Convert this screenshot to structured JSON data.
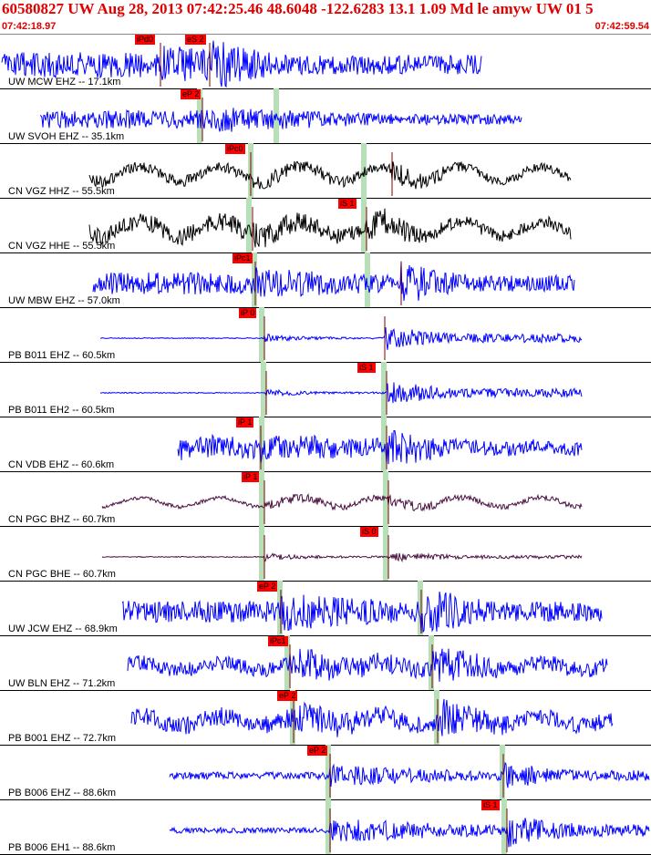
{
  "header": {
    "title": "60580827 UW Aug 28, 2013 07:42:25.46   48.6048 -122.6283 13.1 1.09 Md le amyw UW 01   5",
    "time_start": "07:42:18.97",
    "time_end": "07:42:59.54"
  },
  "colors": {
    "title": "#e00000",
    "blue_trace": "#0000ff",
    "black_trace": "#000000",
    "purple_trace": "#4a1040",
    "pick_flag": "#ff0000",
    "arrival_band": "#b8e0b8"
  },
  "traces": [
    {
      "label": "UW MCW EHZ -- 17.1km",
      "color": "blue",
      "picks": [
        "iPd0",
        "eS 2"
      ]
    },
    {
      "label": "UW SVOH EHZ -- 35.1km",
      "color": "blue",
      "picks": [
        "eP 2"
      ]
    },
    {
      "label": "CN VGZ HHZ -- 55.5km",
      "color": "black",
      "picks": [
        "iPc0"
      ]
    },
    {
      "label": "CN VGZ HHE -- 55.5km",
      "color": "black",
      "picks": [
        "iS 1"
      ]
    },
    {
      "label": "UW MBW EHZ -- 57.0km",
      "color": "blue",
      "picks": [
        "iPc1"
      ]
    },
    {
      "label": "PB B011 EHZ -- 60.5km",
      "color": "blue",
      "picks": [
        "iP 0"
      ]
    },
    {
      "label": "PB B011 EH2 -- 60.5km",
      "color": "blue",
      "picks": [
        "iS 1"
      ]
    },
    {
      "label": "CN VDB EHZ -- 60.6km",
      "color": "blue",
      "picks": [
        "iP 1"
      ]
    },
    {
      "label": "CN PGC BHZ -- 60.7km",
      "color": "purple",
      "picks": [
        "iP 1"
      ]
    },
    {
      "label": "CN PGC BHE -- 60.7km",
      "color": "purple",
      "picks": [
        "iS 0"
      ]
    },
    {
      "label": "UW JCW EHZ -- 68.9km",
      "color": "blue",
      "picks": [
        "eP 2"
      ]
    },
    {
      "label": "UW BLN EHZ -- 71.2km",
      "color": "blue",
      "picks": [
        "iPc1"
      ]
    },
    {
      "label": "PB B001 EHZ -- 72.7km",
      "color": "blue",
      "picks": [
        "eP 2"
      ]
    },
    {
      "label": "PB B006 EHZ -- 88.6km",
      "color": "blue",
      "picks": [
        "eP 2"
      ]
    },
    {
      "label": "PB B006 EH1 -- 88.6km",
      "color": "blue",
      "picks": [
        "iS 1"
      ]
    }
  ]
}
